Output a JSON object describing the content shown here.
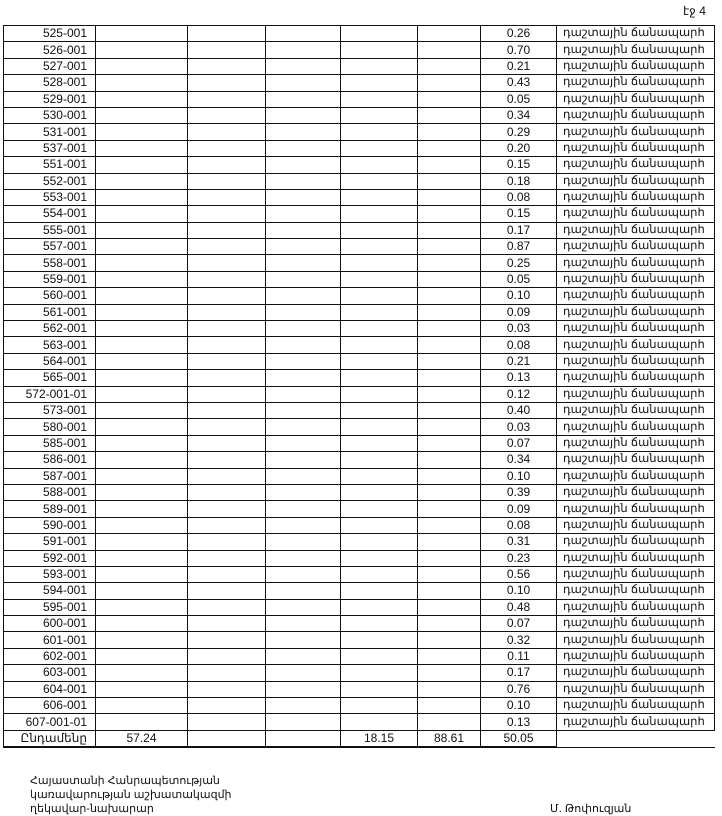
{
  "page_number": "էջ 4",
  "rows": [
    {
      "code": "525-001",
      "area": "0.26",
      "purpose": "դաշտային ճանապարհ"
    },
    {
      "code": "526-001",
      "area": "0.70",
      "purpose": "դաշտային ճանապարհ"
    },
    {
      "code": "527-001",
      "area": "0.21",
      "purpose": "դաշտային ճանապարհ"
    },
    {
      "code": "528-001",
      "area": "0.43",
      "purpose": "դաշտային ճանապարհ"
    },
    {
      "code": "529-001",
      "area": "0.05",
      "purpose": "դաշտային ճանապարհ"
    },
    {
      "code": "530-001",
      "area": "0.34",
      "purpose": "դաշտային ճանապարհ"
    },
    {
      "code": "531-001",
      "area": "0.29",
      "purpose": "դաշտային ճանապարհ"
    },
    {
      "code": "537-001",
      "area": "0.20",
      "purpose": "դաշտային ճանապարհ"
    },
    {
      "code": "551-001",
      "area": "0.15",
      "purpose": "դաշտային ճանապարհ"
    },
    {
      "code": "552-001",
      "area": "0.18",
      "purpose": "դաշտային ճանապարհ"
    },
    {
      "code": "553-001",
      "area": "0.08",
      "purpose": "դաշտային ճանապարհ"
    },
    {
      "code": "554-001",
      "area": "0.15",
      "purpose": "դաշտային ճանապարհ"
    },
    {
      "code": "555-001",
      "area": "0.17",
      "purpose": "դաշտային ճանապարհ"
    },
    {
      "code": "557-001",
      "area": "0.87",
      "purpose": "դաշտային ճանապարհ"
    },
    {
      "code": "558-001",
      "area": "0.25",
      "purpose": "դաշտային ճանապարհ"
    },
    {
      "code": "559-001",
      "area": "0.05",
      "purpose": "դաշտային ճանապարհ"
    },
    {
      "code": "560-001",
      "area": "0.10",
      "purpose": "դաշտային ճանապարհ"
    },
    {
      "code": "561-001",
      "area": "0.09",
      "purpose": "դաշտային ճանապարհ"
    },
    {
      "code": "562-001",
      "area": "0.03",
      "purpose": "դաշտային ճանապարհ"
    },
    {
      "code": "563-001",
      "area": "0.08",
      "purpose": "դաշտային ճանապարհ"
    },
    {
      "code": "564-001",
      "area": "0.21",
      "purpose": "դաշտային ճանապարհ"
    },
    {
      "code": "565-001",
      "area": "0.13",
      "purpose": "դաշտային ճանապարհ"
    },
    {
      "code": "572-001-01",
      "area": "0.12",
      "purpose": "դաշտային ճանապարհ"
    },
    {
      "code": "573-001",
      "area": "0.40",
      "purpose": "դաշտային ճանապարհ"
    },
    {
      "code": "580-001",
      "area": "0.03",
      "purpose": "դաշտային ճանապարհ"
    },
    {
      "code": "585-001",
      "area": "0.07",
      "purpose": "դաշտային ճանապարհ"
    },
    {
      "code": "586-001",
      "area": "0.34",
      "purpose": "դաշտային ճանապարհ"
    },
    {
      "code": "587-001",
      "area": "0.10",
      "purpose": "դաշտային ճանապարհ"
    },
    {
      "code": "588-001",
      "area": "0.39",
      "purpose": "դաշտային ճանապարհ"
    },
    {
      "code": "589-001",
      "area": "0.09",
      "purpose": "դաշտային ճանապարհ"
    },
    {
      "code": "590-001",
      "area": "0.08",
      "purpose": "դաշտային ճանապարհ"
    },
    {
      "code": "591-001",
      "area": "0.31",
      "purpose": "դաշտային ճանապարհ"
    },
    {
      "code": "592-001",
      "area": "0.23",
      "purpose": "դաշտային ճանապարհ"
    },
    {
      "code": "593-001",
      "area": "0.56",
      "purpose": "դաշտային ճանապարհ"
    },
    {
      "code": "594-001",
      "area": "0.10",
      "purpose": "դաշտային ճանապարհ"
    },
    {
      "code": "595-001",
      "area": "0.48",
      "purpose": "դաշտային ճանապարհ"
    },
    {
      "code": "600-001",
      "area": "0.07",
      "purpose": "դաշտային ճանապարհ"
    },
    {
      "code": "601-001",
      "area": "0.32",
      "purpose": "դաշտային ճանապարհ"
    },
    {
      "code": "602-001",
      "area": "0.11",
      "purpose": "դաշտային ճանապարհ"
    },
    {
      "code": "603-001",
      "area": "0.17",
      "purpose": "դաշտային ճանապարհ"
    },
    {
      "code": "604-001",
      "area": "0.76",
      "purpose": "դաշտային ճանապարհ"
    },
    {
      "code": "606-001",
      "area": "0.10",
      "purpose": "դաշտային ճանապարհ"
    },
    {
      "code": "607-001-01",
      "area": "0.13",
      "purpose": "դաշտային ճանապարհ"
    }
  ],
  "total": {
    "label": "Ընդամենը",
    "col2": "57.24",
    "col3": "",
    "col4": "",
    "col5": "18.15",
    "col6": "88.61",
    "col7": "50.05"
  },
  "footer": {
    "position_lines": [
      "Հայաստանի Հանրապետության",
      "կառավարության աշխատակազմի",
      "ղեկավար-նախարար"
    ],
    "signatory": "Մ. Թոփուզյան"
  }
}
